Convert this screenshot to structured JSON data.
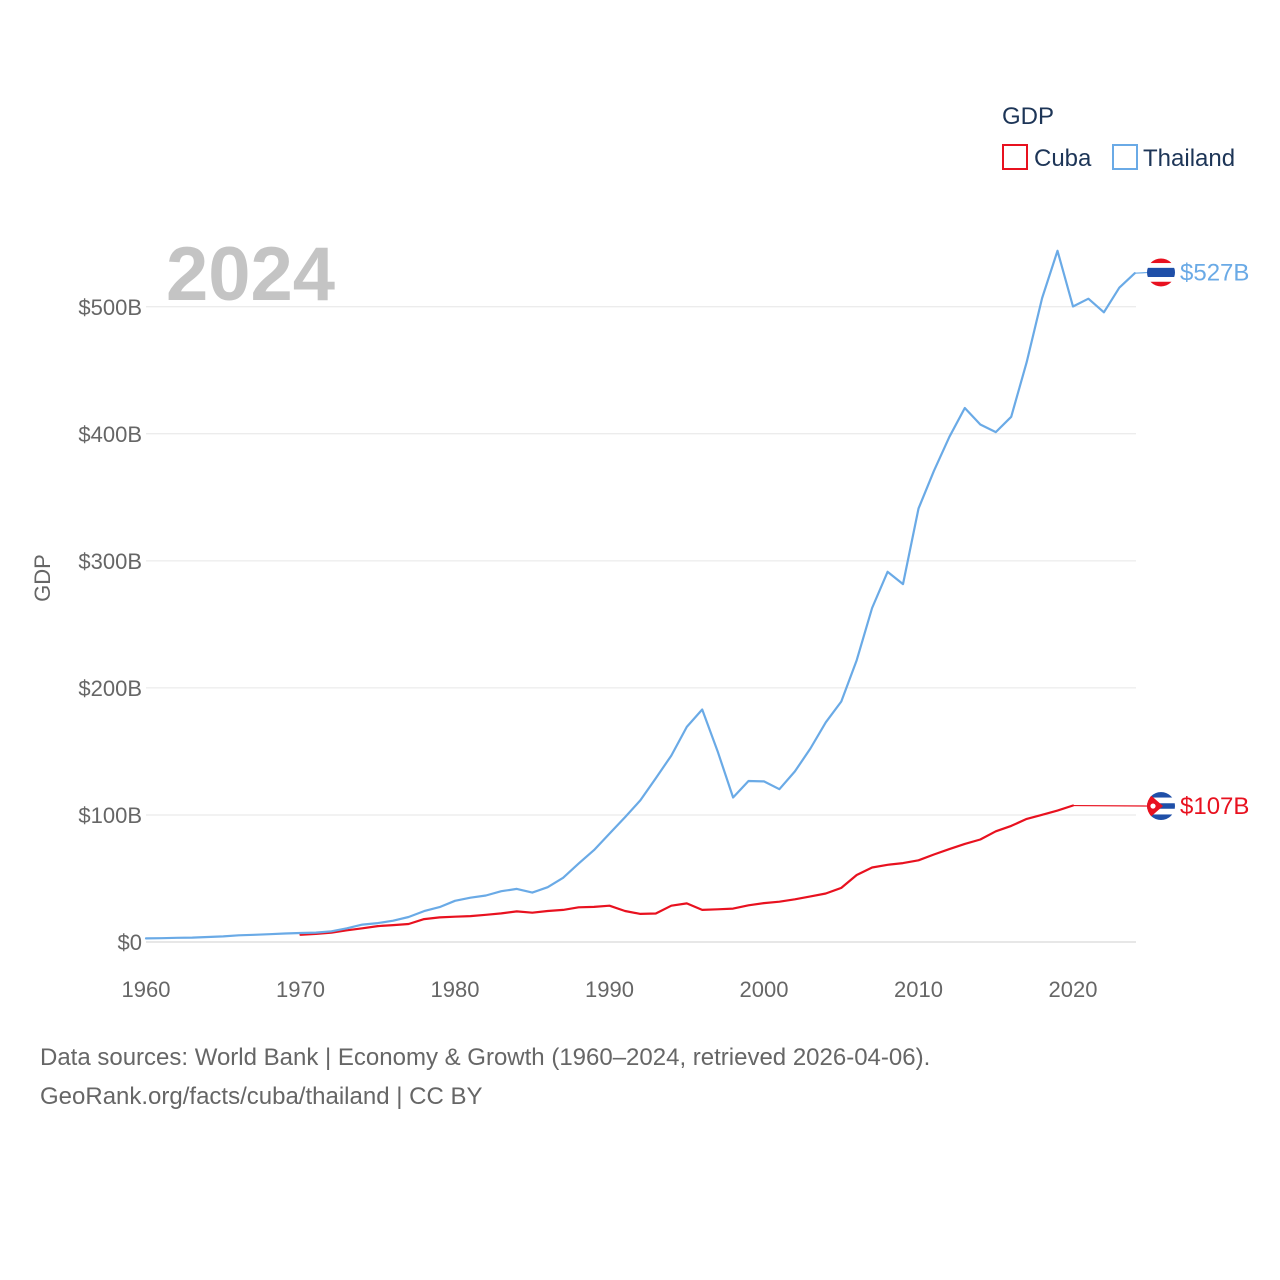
{
  "chart_data": {
    "type": "line",
    "year_label": "2024",
    "ylabel": "GDP",
    "xlabel": "",
    "xlim": [
      1960,
      2024
    ],
    "ylim": [
      0,
      550
    ],
    "x_ticks": [
      1960,
      1970,
      1980,
      1990,
      2000,
      2010,
      2020
    ],
    "y_ticks": [
      {
        "value": 0,
        "label": "$0"
      },
      {
        "value": 100,
        "label": "$100B"
      },
      {
        "value": 200,
        "label": "$200B"
      },
      {
        "value": 300,
        "label": "$300B"
      },
      {
        "value": 400,
        "label": "$400B"
      },
      {
        "value": 500,
        "label": "$500B"
      }
    ],
    "legend": {
      "title": "GDP",
      "position": "top-right",
      "entries": [
        {
          "name": "Cuba",
          "color": "#e8111f"
        },
        {
          "name": "Thailand",
          "color": "#6aaae6"
        }
      ]
    },
    "series": [
      {
        "name": "Cuba",
        "color": "#e8111f",
        "end_label": "$107B",
        "end_value": 107,
        "carry_forward_from": 2020,
        "flag_icon": "cuba-flag-icon",
        "x": [
          1970,
          1971,
          1972,
          1973,
          1974,
          1975,
          1976,
          1977,
          1978,
          1979,
          1980,
          1981,
          1982,
          1983,
          1984,
          1985,
          1986,
          1987,
          1988,
          1989,
          1990,
          1991,
          1992,
          1993,
          1994,
          1995,
          1996,
          1997,
          1998,
          1999,
          2000,
          2001,
          2002,
          2003,
          2004,
          2005,
          2006,
          2007,
          2008,
          2009,
          2010,
          2011,
          2012,
          2013,
          2014,
          2015,
          2016,
          2017,
          2018,
          2019,
          2020
        ],
        "values": [
          5.7,
          6.4,
          7.4,
          9.2,
          10.8,
          12.5,
          13.3,
          14.2,
          18,
          19.4,
          19.9,
          20.4,
          21.4,
          22.5,
          24.1,
          23.1,
          24.4,
          25.3,
          27.3,
          27.6,
          28.6,
          24.4,
          22.1,
          22.4,
          28.6,
          30.4,
          25.3,
          25.7,
          26.3,
          28.9,
          30.6,
          31.7,
          33.6,
          35.9,
          38.2,
          42.6,
          52.7,
          58.6,
          60.8,
          62.1,
          64.3,
          68.9,
          73.1,
          77.2,
          80.7,
          87.1,
          91.4,
          96.9,
          100.1,
          103.4,
          107.4
        ]
      },
      {
        "name": "Thailand",
        "color": "#6aaae6",
        "end_label": "$527B",
        "end_value": 527,
        "flag_icon": "thailand-flag-icon",
        "x": [
          1960,
          1961,
          1962,
          1963,
          1964,
          1965,
          1966,
          1967,
          1968,
          1969,
          1970,
          1971,
          1972,
          1973,
          1974,
          1975,
          1976,
          1977,
          1978,
          1979,
          1980,
          1981,
          1982,
          1983,
          1984,
          1985,
          1986,
          1987,
          1988,
          1989,
          1990,
          1991,
          1992,
          1993,
          1994,
          1995,
          1996,
          1997,
          1998,
          1999,
          2000,
          2001,
          2002,
          2003,
          2004,
          2005,
          2006,
          2007,
          2008,
          2009,
          2010,
          2011,
          2012,
          2013,
          2014,
          2015,
          2016,
          2017,
          2018,
          2019,
          2020,
          2021,
          2022,
          2023,
          2024
        ],
        "values": [
          2.8,
          3.0,
          3.3,
          3.5,
          3.9,
          4.4,
          5.3,
          5.7,
          6.1,
          6.7,
          7.1,
          7.4,
          8.4,
          10.8,
          13.7,
          14.9,
          16.8,
          19.7,
          24.3,
          27.5,
          32.4,
          34.9,
          36.6,
          40.0,
          41.8,
          38.9,
          43.1,
          50.5,
          61.7,
          72.3,
          85.3,
          98.2,
          111.5,
          128.9,
          146.7,
          169.3,
          183.0,
          150.2,
          113.7,
          126.7,
          126.4,
          120.3,
          134.3,
          152.3,
          172.9,
          189.3,
          221.8,
          262.9,
          291.4,
          281.7,
          341.1,
          370.8,
          397.6,
          420.3,
          407.3,
          401.3,
          413.4,
          456.4,
          506.8,
          544.0,
          500.2,
          506.3,
          495.6,
          515.0,
          526.4
        ]
      }
    ]
  },
  "source": {
    "line1": "Data sources: World Bank | Economy & Growth (1960–2024, retrieved 2026-04-06).",
    "line2": "GeoRank.org/facts/cuba/thailand | CC BY"
  }
}
